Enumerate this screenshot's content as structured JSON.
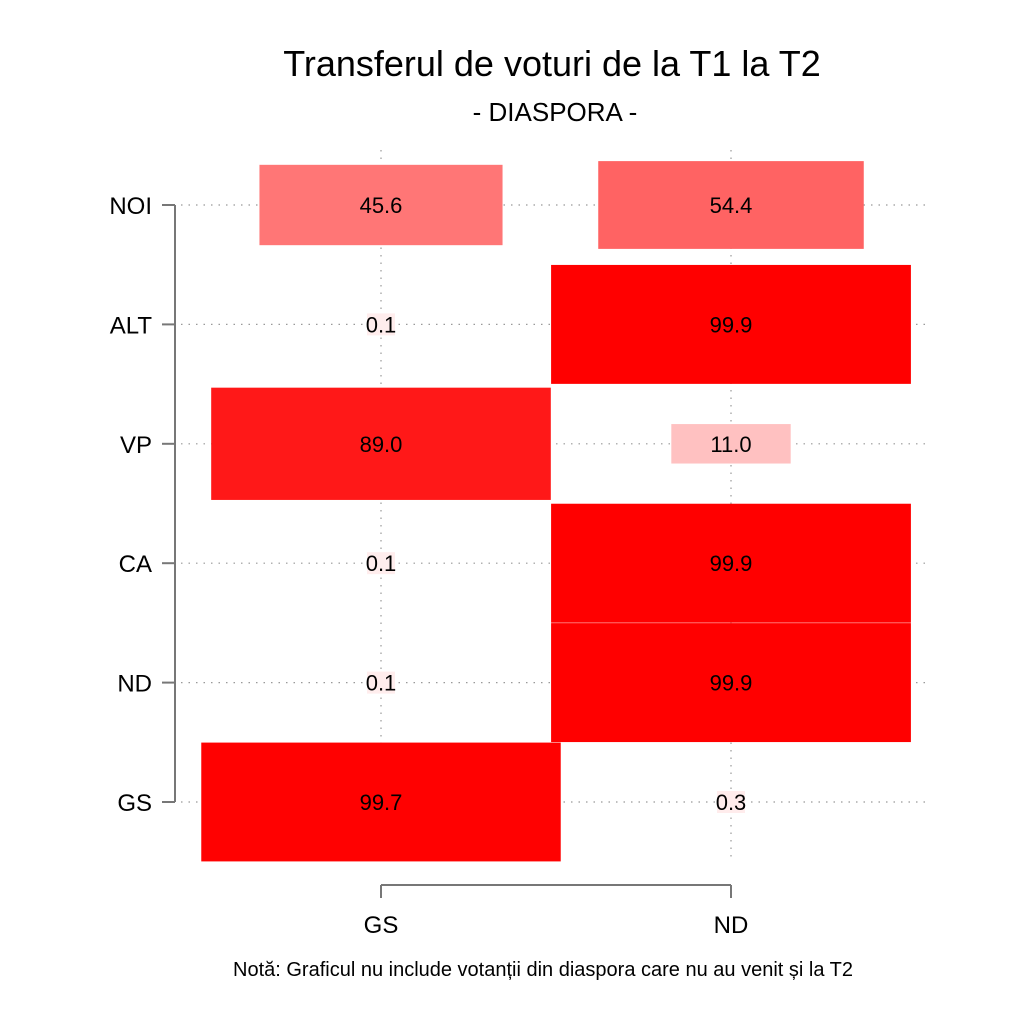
{
  "chart_data": {
    "type": "heatmap",
    "title": "Transferul de voturi de la T1 la T2",
    "subtitle": "- DIASPORA -",
    "note": "Notă: Graficul nu include votanții din diaspora care nu au venit și la T2",
    "x_categories": [
      "GS",
      "ND"
    ],
    "y_categories": [
      "NOI",
      "ALT",
      "VP",
      "CA",
      "ND",
      "GS"
    ],
    "values": [
      [
        45.6,
        54.4
      ],
      [
        0.1,
        99.9
      ],
      [
        89.0,
        11.0
      ],
      [
        0.1,
        99.9
      ],
      [
        0.1,
        99.9
      ],
      [
        99.7,
        0.3
      ]
    ],
    "value_labels": [
      [
        "45.6",
        "54.4"
      ],
      [
        "0.1",
        "99.9"
      ],
      [
        "89.0",
        "11.0"
      ],
      [
        "0.1",
        "99.9"
      ],
      [
        "0.1",
        "99.9"
      ],
      [
        "99.7",
        "0.3"
      ]
    ],
    "color_high": "#ff0000",
    "color_low": "#ffffff",
    "grid": "dotted"
  }
}
